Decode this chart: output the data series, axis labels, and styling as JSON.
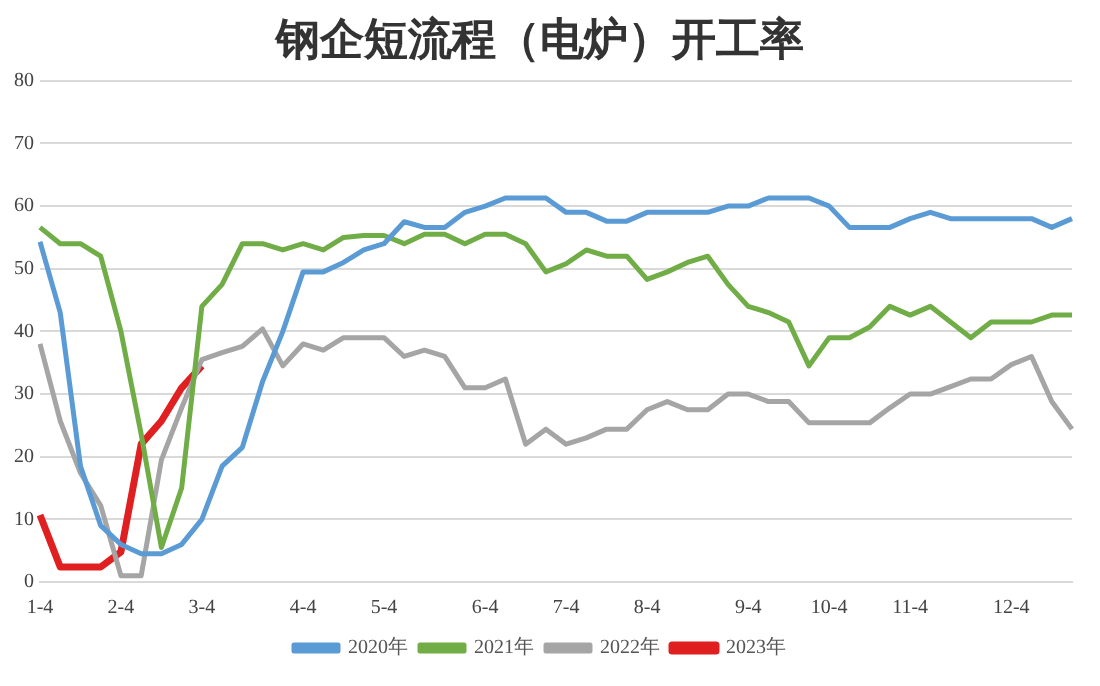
{
  "chart_data": {
    "type": "line",
    "title": "钢企短流程（电炉）开工率",
    "categories": [
      "1-4",
      null,
      null,
      null,
      "2-4",
      null,
      null,
      null,
      "3-4",
      null,
      null,
      null,
      null,
      "4-4",
      null,
      null,
      null,
      "5-4",
      null,
      null,
      null,
      null,
      "6-4",
      null,
      null,
      null,
      "7-4",
      null,
      null,
      null,
      "8-4",
      null,
      null,
      null,
      null,
      "9-4",
      null,
      null,
      null,
      "10-4",
      null,
      null,
      null,
      "11-4",
      null,
      null,
      null,
      null,
      "12-4",
      null,
      null,
      null
    ],
    "series": [
      {
        "name": "2020年",
        "color": "#5b9bd5",
        "values": [
          54.3,
          43,
          18.5,
          9,
          6,
          4.5,
          4.5,
          6,
          10,
          18.5,
          21.5,
          32,
          40,
          49.5,
          49.5,
          51,
          53,
          54,
          57.5,
          56.6,
          56.6,
          59,
          60,
          61.3,
          61.3,
          61.3,
          59,
          59,
          57.6,
          57.6,
          59,
          59,
          59,
          59,
          60,
          60,
          61.3,
          61.3,
          61.3,
          60,
          56.6,
          56.6,
          56.6,
          58,
          59,
          58,
          58,
          58,
          58,
          58,
          56.6,
          58
        ]
      },
      {
        "name": "2021年",
        "color": "#70ad47",
        "values": [
          56.6,
          54,
          54,
          52,
          40,
          23.6,
          5.5,
          15,
          44,
          47.5,
          54,
          54,
          53,
          54,
          53,
          55,
          55.3,
          55.3,
          54,
          55.5,
          55.5,
          54,
          55.5,
          55.5,
          54,
          49.5,
          50.8,
          53,
          52,
          52,
          48.3,
          49.5,
          51,
          52,
          47.5,
          44,
          43,
          41.5,
          34.5,
          39,
          39,
          40.7,
          44,
          42.6,
          44,
          41.5,
          39,
          41.5,
          41.5,
          41.5,
          42.6,
          42.6
        ]
      },
      {
        "name": "2022年",
        "color": "#a5a5a5",
        "values": [
          38,
          25.7,
          17.4,
          12.2,
          1,
          1,
          19.5,
          27.8,
          35.5,
          36.6,
          37.6,
          40.4,
          34.5,
          38,
          37,
          39,
          39,
          39,
          36,
          37,
          36,
          31,
          31,
          32.4,
          22,
          24.4,
          22,
          23,
          24.4,
          24.4,
          27.5,
          28.8,
          27.5,
          27.5,
          30,
          30,
          28.8,
          28.8,
          25.4,
          25.4,
          25.4,
          25.4,
          27.8,
          30,
          30,
          31.2,
          32.4,
          32.4,
          34.7,
          36,
          28.8,
          24.4
        ]
      },
      {
        "name": "2023年",
        "color": "#e02020",
        "values": [
          10.7,
          2.4,
          2.4,
          2.4,
          4.8,
          22,
          25.7,
          31,
          34.5,
          null,
          null,
          null,
          null,
          null,
          null,
          null,
          null,
          null,
          null,
          null,
          null,
          null,
          null,
          null,
          null,
          null,
          null,
          null,
          null,
          null,
          null,
          null,
          null,
          null,
          null,
          null,
          null,
          null,
          null,
          null,
          null,
          null,
          null,
          null,
          null,
          null,
          null,
          null,
          null,
          null,
          null,
          null
        ]
      }
    ],
    "ylim": [
      0,
      80
    ],
    "yticks": [
      0,
      10,
      20,
      30,
      40,
      50,
      60,
      70,
      80
    ],
    "grid": "y",
    "legend": "bottom",
    "marker": "none",
    "line_style": "solid"
  }
}
